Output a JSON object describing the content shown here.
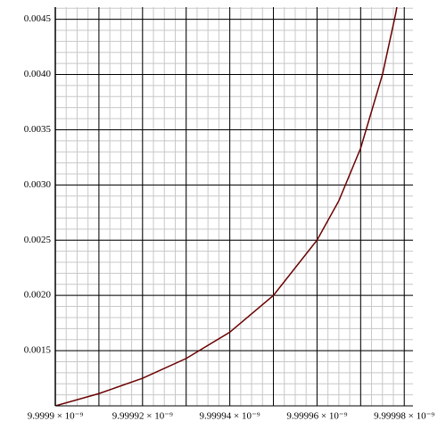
{
  "chart_data": {
    "type": "line",
    "x": [
      9.9999e-09,
      9.99991e-09,
      9.99992e-09,
      9.99993e-09,
      9.99994e-09,
      9.99995e-09,
      9.99996e-09,
      9.999965e-09,
      9.99997e-09,
      9.999975e-09,
      9.999978e-09,
      9.9999783e-09
    ],
    "series": [
      {
        "color": "#6b0000",
        "values": [
          0.001,
          0.001111,
          0.00125,
          0.001429,
          0.001667,
          0.002,
          0.0025,
          0.002857,
          0.003333,
          0.004,
          0.004545,
          0.00461
        ]
      }
    ],
    "xlim": [
      9.9999e-09,
      9.999982e-09
    ],
    "ylim": [
      0.001,
      0.00461
    ],
    "xticks": [
      {
        "value": 9.9999e-09,
        "label": "9.9999 × 10⁻⁹"
      },
      {
        "value": 9.99991e-09,
        "label": null
      },
      {
        "value": 9.99992e-09,
        "label": "9.99992 × 10⁻⁹"
      },
      {
        "value": 9.99993e-09,
        "label": null
      },
      {
        "value": 9.99994e-09,
        "label": "9.99994 × 10⁻⁹"
      },
      {
        "value": 9.99995e-09,
        "label": null
      },
      {
        "value": 9.99996e-09,
        "label": "9.99996 × 10⁻⁹"
      },
      {
        "value": 9.99997e-09,
        "label": null
      },
      {
        "value": 9.99998e-09,
        "label": "9.99998 × 10⁻⁹"
      }
    ],
    "yticks": [
      0.0015,
      {
        "value": 0.002,
        "label": "0.0020"
      },
      0.0025,
      {
        "value": 0.003,
        "label": "0.0030"
      },
      0.0035,
      {
        "value": 0.004,
        "label": "0.0040"
      },
      0.0045
    ],
    "grid": true
  }
}
